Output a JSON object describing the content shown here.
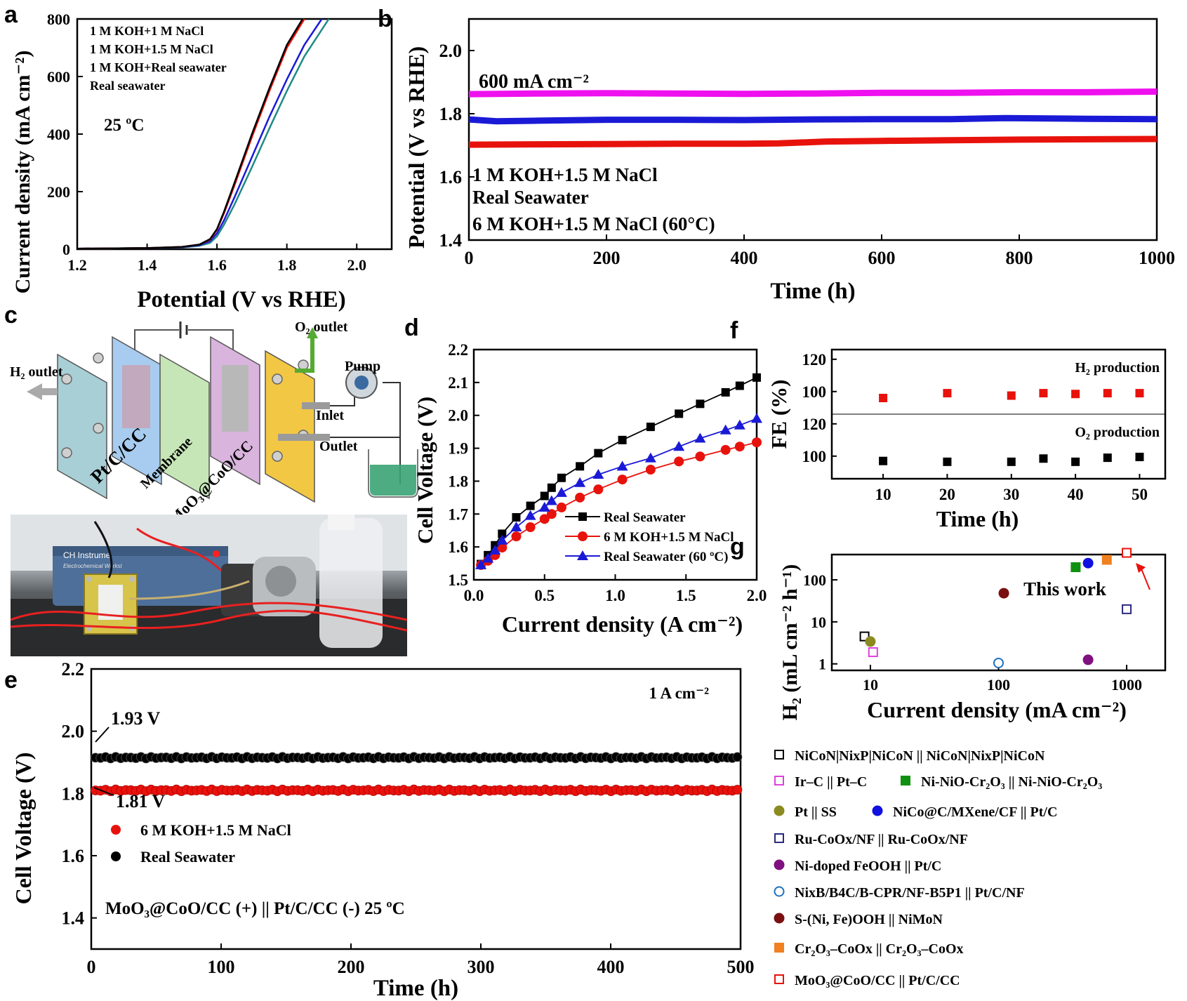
{
  "figure": {
    "panel_letters": [
      "a",
      "b",
      "c",
      "d",
      "e",
      "f",
      "g"
    ]
  },
  "panel_c": {
    "labels": {
      "h2_outlet": "H₂ outlet",
      "o2_outlet": "O₂ outlet",
      "pump": "Pump",
      "inlet": "Inlet",
      "outlet": "Outlet",
      "cathode": "Pt/C/CC",
      "membrane": "Membrane",
      "anode": "MoO₃@CoO/CC"
    },
    "photo_labels": {
      "instrument_line1": "CH Instrume",
      "instrument_line2": "Electrochemical Workst"
    },
    "colors": {
      "end_plate": "#a9cfd6",
      "cathode_plate": "#a8ccef",
      "membrane_plate": "#c7e6b8",
      "anode_plate": "#d9b4dd",
      "flow_plate": "#f2c744",
      "electrolyte": "#3aa373"
    }
  },
  "chart_data": [
    {
      "id": "a",
      "type": "line",
      "xlabel": "Potential (V vs RHE)",
      "ylabel": "Current density (mA cm⁻²)",
      "xlim": [
        1.2,
        2.1
      ],
      "ylim": [
        0,
        800
      ],
      "xticks": [
        "1.2",
        "1.4",
        "1.6",
        "1.8",
        "2.0"
      ],
      "yticks": [
        "0",
        "200",
        "400",
        "600",
        "800"
      ],
      "annotation": "25 ºC",
      "series": [
        {
          "name": "1 M KOH+1 M NaCl",
          "color": "#000000",
          "x": [
            1.2,
            1.4,
            1.5,
            1.55,
            1.58,
            1.6,
            1.62,
            1.65,
            1.7,
            1.75,
            1.8,
            1.845
          ],
          "y": [
            2,
            4,
            8,
            16,
            35,
            70,
            130,
            230,
            400,
            560,
            710,
            800
          ]
        },
        {
          "name": "1 M KOH+1.5 M NaCl",
          "color": "#e8120c",
          "x": [
            1.2,
            1.4,
            1.5,
            1.55,
            1.58,
            1.6,
            1.62,
            1.65,
            1.7,
            1.75,
            1.8,
            1.85
          ],
          "y": [
            2,
            4,
            8,
            16,
            33,
            68,
            125,
            222,
            390,
            550,
            700,
            800
          ]
        },
        {
          "name": "1 M KOH+Real seawater",
          "color": "#1a1ad6",
          "x": [
            1.2,
            1.4,
            1.5,
            1.55,
            1.58,
            1.6,
            1.62,
            1.65,
            1.7,
            1.75,
            1.8,
            1.85,
            1.9
          ],
          "y": [
            2,
            4,
            7,
            14,
            28,
            55,
            100,
            180,
            320,
            460,
            590,
            710,
            800
          ]
        },
        {
          "name": "Real seawater",
          "color": "#1f8a86",
          "x": [
            1.2,
            1.4,
            1.5,
            1.55,
            1.58,
            1.6,
            1.62,
            1.65,
            1.7,
            1.75,
            1.8,
            1.85,
            1.92
          ],
          "y": [
            2,
            4,
            6,
            12,
            22,
            45,
            85,
            155,
            285,
            420,
            550,
            670,
            800
          ]
        }
      ]
    },
    {
      "id": "b",
      "type": "line",
      "xlabel": "Time (h)",
      "ylabel": "Potential (V vs RHE)",
      "xlim": [
        0,
        1000
      ],
      "ylim": [
        1.4,
        2.1
      ],
      "xticks": [
        "0",
        "200",
        "400",
        "600",
        "800",
        "1000"
      ],
      "yticks": [
        "1.4",
        "1.6",
        "1.8",
        "2.0"
      ],
      "annotation": "600 mA cm⁻²",
      "series": [
        {
          "name": "1 M KOH+1.5 M NaCl",
          "color": "#1a1ad6",
          "x": [
            0,
            40,
            100,
            200,
            300,
            400,
            500,
            600,
            700,
            780,
            900,
            1000
          ],
          "y": [
            1.782,
            1.776,
            1.778,
            1.781,
            1.781,
            1.78,
            1.782,
            1.783,
            1.783,
            1.786,
            1.784,
            1.783
          ]
        },
        {
          "name": "Real Seawater",
          "color": "#ee10ee",
          "x": [
            0,
            100,
            200,
            300,
            400,
            500,
            600,
            700,
            800,
            900,
            1000
          ],
          "y": [
            1.862,
            1.864,
            1.865,
            1.864,
            1.863,
            1.864,
            1.866,
            1.866,
            1.868,
            1.868,
            1.87
          ]
        },
        {
          "name": "6 M KOH+1.5 M NaCl (60°C)",
          "color": "#e8120c",
          "x": [
            0,
            100,
            200,
            300,
            400,
            450,
            520,
            600,
            700,
            800,
            900,
            1000
          ],
          "y": [
            1.702,
            1.703,
            1.704,
            1.705,
            1.705,
            1.706,
            1.712,
            1.714,
            1.716,
            1.718,
            1.719,
            1.72
          ]
        }
      ]
    },
    {
      "id": "d",
      "type": "line",
      "xlabel": "Current density (A cm⁻²)",
      "ylabel": "Cell Voltage (V)",
      "xlim": [
        0,
        2.0
      ],
      "ylim": [
        1.5,
        2.2
      ],
      "xticks": [
        "0.0",
        "0.5",
        "1.0",
        "1.5",
        "2.0"
      ],
      "yticks": [
        "1.5",
        "1.6",
        "1.7",
        "1.8",
        "1.9",
        "2.0",
        "2.1",
        "2.2"
      ],
      "series": [
        {
          "name": "Real Seawater",
          "color": "#000000",
          "marker": "square",
          "x": [
            0.05,
            0.1,
            0.15,
            0.2,
            0.3,
            0.4,
            0.5,
            0.55,
            0.62,
            0.75,
            0.88,
            1.05,
            1.25,
            1.45,
            1.6,
            1.78,
            1.88,
            2.0
          ],
          "y": [
            1.548,
            1.575,
            1.605,
            1.64,
            1.69,
            1.725,
            1.755,
            1.78,
            1.81,
            1.845,
            1.885,
            1.925,
            1.965,
            2.005,
            2.035,
            2.07,
            2.09,
            2.115
          ]
        },
        {
          "name": "6 M KOH+1.5 M NaCl",
          "color": "#e8120c",
          "marker": "circle",
          "x": [
            0.05,
            0.1,
            0.15,
            0.2,
            0.3,
            0.4,
            0.5,
            0.55,
            0.62,
            0.75,
            0.88,
            1.05,
            1.25,
            1.45,
            1.6,
            1.78,
            1.88,
            2.0
          ],
          "y": [
            1.545,
            1.558,
            1.575,
            1.598,
            1.632,
            1.66,
            1.685,
            1.7,
            1.72,
            1.75,
            1.775,
            1.805,
            1.835,
            1.86,
            1.875,
            1.895,
            1.905,
            1.918
          ]
        },
        {
          "name": "Real Seawater (60 ºC)",
          "color": "#1a1ad6",
          "marker": "triangle",
          "x": [
            0.05,
            0.1,
            0.15,
            0.2,
            0.3,
            0.4,
            0.5,
            0.55,
            0.62,
            0.75,
            0.88,
            1.05,
            1.25,
            1.45,
            1.6,
            1.78,
            1.88,
            2.0
          ],
          "y": [
            1.545,
            1.565,
            1.59,
            1.62,
            1.66,
            1.695,
            1.72,
            1.74,
            1.765,
            1.795,
            1.82,
            1.845,
            1.87,
            1.905,
            1.93,
            1.955,
            1.97,
            1.99
          ]
        }
      ]
    },
    {
      "id": "e",
      "type": "scatter",
      "xlabel": "Time (h)",
      "ylabel": "Cell Voltage (V)",
      "xlim": [
        0,
        500
      ],
      "ylim": [
        1.3,
        2.2
      ],
      "xticks": [
        "0",
        "100",
        "200",
        "300",
        "400",
        "500"
      ],
      "yticks": [
        "1.4",
        "1.6",
        "1.8",
        "2.0",
        "2.2"
      ],
      "annotations": [
        "1 A cm⁻²",
        "1.93 V",
        "1.81 V",
        "MoO₃@CoO/CC (+) || Pt/C/CC (-) 25 ºC"
      ],
      "series": [
        {
          "name": "6 M KOH+1.5 M NaCl",
          "color": "#e8120c",
          "level": 1.81
        },
        {
          "name": "Real Seawater",
          "color": "#000000",
          "level": 1.915
        }
      ]
    },
    {
      "id": "f",
      "type": "scatter",
      "xlabel": "Time (h)",
      "ylabel": "FE (%)",
      "xlim": [
        2,
        54
      ],
      "xticks": [
        "10",
        "20",
        "30",
        "40",
        "50"
      ],
      "upper": {
        "label": "H₂ production",
        "ylim": [
          80,
          120
        ],
        "yticks": [
          "100",
          "120"
        ],
        "color": "#e8120c",
        "x": [
          10,
          20,
          30,
          35,
          40,
          45,
          50
        ],
        "y": [
          96,
          99,
          97.5,
          99,
          98.5,
          99,
          99
        ]
      },
      "lower": {
        "label": "O₂ production",
        "ylim": [
          80,
          120
        ],
        "yticks": [
          "100",
          "120"
        ],
        "color": "#000000",
        "x": [
          10,
          20,
          30,
          35,
          40,
          45,
          50
        ],
        "y": [
          97,
          96.5,
          96.5,
          98.5,
          96.5,
          99,
          99.5
        ]
      }
    },
    {
      "id": "g",
      "type": "scatter",
      "xlabel": "Current density (mA cm⁻²)",
      "ylabel": "H₂ (mL cm⁻² h⁻¹)",
      "xscale": "log",
      "yscale": "log",
      "xlim": [
        5,
        2000
      ],
      "ylim": [
        0.7,
        400
      ],
      "xticks": [
        "10",
        "100",
        "1000"
      ],
      "yticks": [
        "1",
        "10",
        "100"
      ],
      "annotation": "This work",
      "points": [
        {
          "name": "NiCoN|NixP|NiCoN || NiCoN|NixP|NiCoN",
          "x": 9,
          "y": 4.5,
          "marker": "open-square",
          "color": "#000000"
        },
        {
          "name": "Ir–C || Pt–C",
          "x": 10.5,
          "y": 1.9,
          "marker": "open-square",
          "color": "#e040e0"
        },
        {
          "name": "Ni-NiO-Cr₂O₃ || Ni-NiO-Cr₂O₃",
          "x": 400,
          "y": 200,
          "marker": "filled-square",
          "color": "#109010"
        },
        {
          "name": "Pt || SS",
          "x": 10,
          "y": 3.4,
          "marker": "filled-circle",
          "color": "#8a8a20"
        },
        {
          "name": "NiCo@C/MXene/CF || Pt/C",
          "x": 500,
          "y": 250,
          "marker": "filled-circle",
          "color": "#1010e0"
        },
        {
          "name": "Ru-CoOx/NF || Ru-CoOx/NF",
          "x": 1000,
          "y": 20,
          "marker": "open-square",
          "color": "#2a2a80"
        },
        {
          "name": "Ni-doped FeOOH || Pt/C",
          "x": 500,
          "y": 1.25,
          "marker": "filled-circle",
          "color": "#801080"
        },
        {
          "name": "NixB/B4C/B-CPR/NF-B5P1 || Pt/C/NF",
          "x": 100,
          "y": 1.05,
          "marker": "open-circle",
          "color": "#2070c0"
        },
        {
          "name": "S-(Ni, Fe)OOH || NiMoN",
          "x": 110,
          "y": 48,
          "marker": "filled-circle",
          "color": "#7a1010"
        },
        {
          "name": "Cr₂O₃–CoOx || Cr₂O₃–CoOx",
          "x": 700,
          "y": 300,
          "marker": "filled-square",
          "color": "#f08020"
        },
        {
          "name": "MoO₃@CoO/CC || Pt/C/CC",
          "x": 1000,
          "y": 440,
          "marker": "open-square",
          "color": "#e8120c"
        }
      ]
    }
  ],
  "legend_g": [
    {
      "label": "NiCoN|NixP|NiCoN || NiCoN|NixP|NiCoN",
      "marker": "open-square",
      "color": "#000000"
    },
    {
      "label": "Ir–C || Pt–C",
      "marker": "open-square",
      "color": "#e040e0"
    },
    {
      "label": "Ni-NiO-Cr₂O₃ || Ni-NiO-Cr₂O₃",
      "marker": "filled-square",
      "color": "#109010"
    },
    {
      "label": "Pt || SS",
      "marker": "filled-circle",
      "color": "#8a8a20"
    },
    {
      "label": "NiCo@C/MXene/CF || Pt/C",
      "marker": "filled-circle",
      "color": "#1010e0"
    },
    {
      "label": "Ru-CoOx/NF || Ru-CoOx/NF",
      "marker": "open-square",
      "color": "#2a2a80"
    },
    {
      "label": "Ni-doped FeOOH || Pt/C",
      "marker": "filled-circle",
      "color": "#801080"
    },
    {
      "label": "NixB/B4C/B-CPR/NF-B5P1 || Pt/C/NF",
      "marker": "open-circle",
      "color": "#2070c0"
    },
    {
      "label": "S-(Ni, Fe)OOH || NiMoN",
      "marker": "filled-circle",
      "color": "#7a1010"
    },
    {
      "label": "Cr₂O₃–CoOx || Cr₂O₃–CoOx",
      "marker": "filled-square",
      "color": "#f08020"
    },
    {
      "label": "MoO₃@CoO/CC || Pt/C/CC",
      "marker": "open-square",
      "color": "#e8120c"
    }
  ]
}
